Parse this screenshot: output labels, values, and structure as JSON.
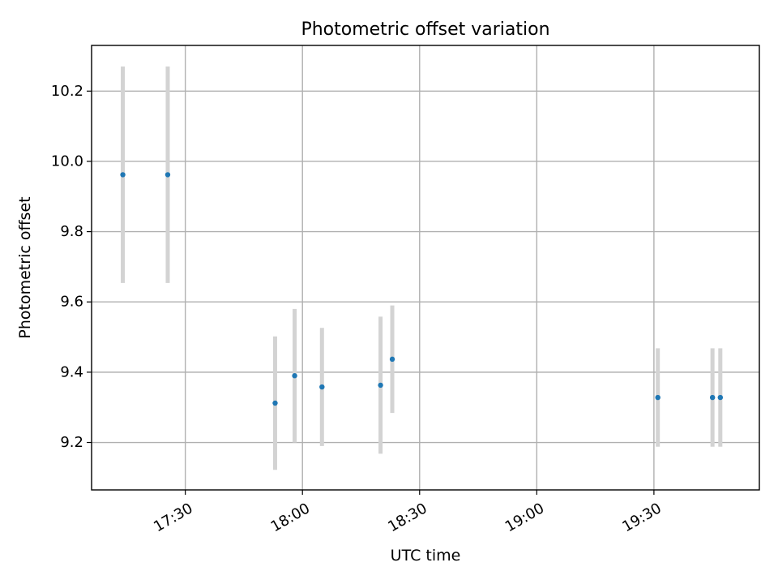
{
  "chart_data": {
    "type": "scatter",
    "title": "Photometric offset variation",
    "xlabel": "UTC time",
    "ylabel": "Photometric offset",
    "x_axis_type": "time",
    "xlim": [
      "17:06",
      "19:57"
    ],
    "ylim": [
      9.065,
      10.33
    ],
    "grid": true,
    "x_ticks": [
      "17:30",
      "18:00",
      "18:30",
      "19:00",
      "19:30"
    ],
    "y_ticks": [
      "9.2",
      "9.4",
      "9.6",
      "9.8",
      "10.0",
      "10.2"
    ],
    "points": [
      {
        "x": "17:14",
        "y": 9.962,
        "err": 0.308
      },
      {
        "x": "17:25.5",
        "y": 9.962,
        "err": 0.308
      },
      {
        "x": "17:53",
        "y": 9.312,
        "err": 0.19
      },
      {
        "x": "17:58",
        "y": 9.39,
        "err": 0.19
      },
      {
        "x": "18:05",
        "y": 9.358,
        "err": 0.168
      },
      {
        "x": "18:20",
        "y": 9.363,
        "err": 0.195
      },
      {
        "x": "18:23",
        "y": 9.437,
        "err": 0.153
      },
      {
        "x": "19:31",
        "y": 9.328,
        "err": 0.14
      },
      {
        "x": "19:45",
        "y": 9.328,
        "err": 0.14
      },
      {
        "x": "19:47",
        "y": 9.328,
        "err": 0.14
      }
    ],
    "colors": {
      "marker": "#1f77b4",
      "errorbar": "#d3d3d3",
      "grid": "#b0b0b0",
      "axes": "#000000"
    }
  }
}
